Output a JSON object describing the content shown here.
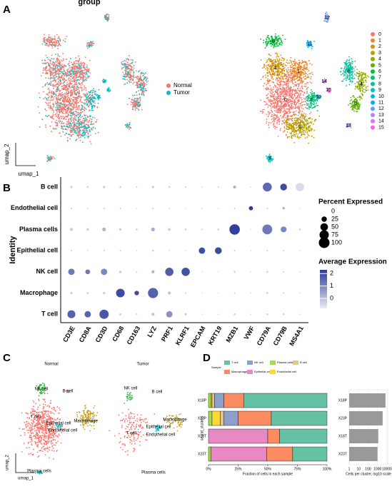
{
  "panels": {
    "a": "A",
    "b": "B",
    "c": "C",
    "d": "D"
  },
  "umap_group": {
    "title": "group",
    "xlabel": "umap_1",
    "ylabel": "umap_2",
    "legend": [
      {
        "name": "Normal",
        "color": "#f8766d"
      },
      {
        "name": "Tumor",
        "color": "#00bfc4"
      }
    ]
  },
  "umap_clusters": {
    "legend": [
      {
        "name": "0",
        "color": "#F8766D"
      },
      {
        "name": "1",
        "color": "#E88526"
      },
      {
        "name": "2",
        "color": "#D39200"
      },
      {
        "name": "3",
        "color": "#B79F00"
      },
      {
        "name": "4",
        "color": "#93AA00"
      },
      {
        "name": "5",
        "color": "#5EB300"
      },
      {
        "name": "6",
        "color": "#00BA38"
      },
      {
        "name": "7",
        "color": "#00BF74"
      },
      {
        "name": "8",
        "color": "#00C19F"
      },
      {
        "name": "9",
        "color": "#00BFC4"
      },
      {
        "name": "10",
        "color": "#00B9E3"
      },
      {
        "name": "11",
        "color": "#00ADFA"
      },
      {
        "name": "12",
        "color": "#619CFF"
      },
      {
        "name": "13",
        "color": "#AE87FF"
      },
      {
        "name": "14",
        "color": "#DB72FB"
      },
      {
        "name": "15",
        "color": "#F564E3"
      }
    ]
  },
  "umap_celltype": {
    "titles": [
      "Normal",
      "Tumor"
    ],
    "xlabel": "umap_1",
    "ylabel": "umap_2",
    "labels_normal": [
      "NK cell",
      "B cell",
      "T cell",
      "Epithelial cell",
      "Endothelial cell",
      "Macrophage",
      "Plasma cells"
    ],
    "labels_tumor": [
      "NK cell",
      "B cell",
      "Macrophage",
      "Epithelial cell",
      "T cell",
      "Endothelial cell",
      "Plasma cells"
    ]
  },
  "chart_data": [
    {
      "type": "dot",
      "ylabel": "Identity",
      "categories": [
        "CD3E",
        "CD8A",
        "CD3D",
        "CD68",
        "CD163",
        "LYZ",
        "PRF1",
        "KLRF1",
        "EPCAM",
        "KRT19",
        "MZB1",
        "VWF",
        "CD79A",
        "CD79B",
        "MS4A1"
      ],
      "rows": [
        "B cell",
        "Endothelial cell",
        "Plasma cells",
        "Epithelial cell",
        "NK cell",
        "Macrophage",
        "T cell"
      ],
      "pct": [
        [
          5,
          3,
          5,
          3,
          2,
          5,
          3,
          2,
          1,
          2,
          8,
          1,
          70,
          40,
          60
        ],
        [
          2,
          1,
          2,
          2,
          1,
          2,
          1,
          1,
          1,
          1,
          2,
          15,
          2,
          5,
          1
        ],
        [
          8,
          5,
          12,
          5,
          3,
          12,
          6,
          3,
          2,
          3,
          95,
          1,
          85,
          30,
          3
        ],
        [
          2,
          1,
          2,
          2,
          1,
          3,
          1,
          1,
          35,
          40,
          2,
          1,
          2,
          2,
          1
        ],
        [
          35,
          20,
          35,
          5,
          2,
          8,
          60,
          60,
          1,
          1,
          3,
          1,
          3,
          2,
          1
        ],
        [
          5,
          3,
          5,
          65,
          18,
          90,
          8,
          2,
          1,
          1,
          2,
          1,
          3,
          2,
          1
        ],
        [
          55,
          35,
          75,
          4,
          2,
          8,
          35,
          4,
          1,
          1,
          3,
          1,
          3,
          3,
          1
        ]
      ],
      "avg": [
        [
          -0.3,
          -0.3,
          -0.3,
          -0.3,
          -0.3,
          -0.3,
          -0.3,
          -0.3,
          -0.3,
          -0.3,
          0.2,
          -0.3,
          1.5,
          2.0,
          -0.5
        ],
        [
          -0.3,
          -0.3,
          -0.3,
          -0.3,
          -0.3,
          -0.3,
          -0.3,
          -0.3,
          -0.3,
          -0.3,
          -0.3,
          2.3,
          -0.3,
          0.3,
          -0.3
        ],
        [
          -0.2,
          -0.2,
          0.2,
          -0.2,
          -0.3,
          0.3,
          -0.2,
          -0.3,
          -0.3,
          -0.3,
          2.2,
          -0.3,
          1.2,
          1.0,
          -0.3
        ],
        [
          -0.3,
          -0.3,
          -0.3,
          -0.3,
          -0.3,
          -0.3,
          -0.3,
          -0.3,
          2.0,
          2.0,
          -0.3,
          -0.3,
          -0.3,
          -0.3,
          -0.3
        ],
        [
          1.2,
          1.2,
          1.0,
          -0.2,
          -0.3,
          0.2,
          1.7,
          1.9,
          -0.3,
          -0.3,
          -0.3,
          -0.3,
          -0.3,
          -0.3,
          -0.3
        ],
        [
          -0.3,
          -0.3,
          -0.3,
          2.0,
          2.0,
          1.6,
          -0.1,
          -0.3,
          -0.3,
          -0.3,
          -0.3,
          -0.3,
          -0.3,
          -0.3,
          -0.3
        ],
        [
          1.6,
          1.6,
          1.8,
          -0.3,
          -0.3,
          -0.1,
          0.8,
          -0.2,
          -0.3,
          -0.3,
          -0.3,
          -0.3,
          -0.3,
          -0.3,
          -0.3
        ]
      ],
      "size_legend": {
        "title": "Percent Expressed",
        "values": [
          0,
          25,
          50,
          75,
          100
        ]
      },
      "color_legend": {
        "title": "Average Expression",
        "ticks": [
          0,
          1,
          2
        ],
        "lim": [
          -0.8,
          2.3
        ],
        "colors": [
          "#ececf2",
          "#2b3a99"
        ]
      }
    },
    {
      "type": "stacked_bar",
      "legend_title": "Sample",
      "ylabel": "seurat_clusters",
      "xlabel": "Fraction of cells in each sample",
      "categories": [
        "X18P",
        "X23P",
        "X18T",
        "X23T"
      ],
      "series": [
        {
          "name": "T cell",
          "color": "#66c2a5",
          "values": [
            70,
            47,
            40,
            29
          ]
        },
        {
          "name": "NK cell",
          "color": "#8da0cb",
          "values": [
            8,
            12,
            0,
            0
          ]
        },
        {
          "name": "Plasma cells",
          "color": "#a6d854",
          "values": [
            2,
            3,
            0,
            2
          ]
        },
        {
          "name": "B cell",
          "color": "#e5c494",
          "values": [
            2,
            3,
            0,
            0
          ]
        },
        {
          "name": "Macrophage",
          "color": "#fc8d62",
          "values": [
            17,
            28,
            10,
            22
          ]
        },
        {
          "name": "Epithelial cell",
          "color": "#e78ac3",
          "values": [
            0,
            0,
            50,
            47
          ]
        },
        {
          "name": "Endothelial cell",
          "color": "#ffd92f",
          "values": [
            1,
            7,
            0,
            0
          ]
        }
      ],
      "xlim": [
        0,
        100
      ],
      "xticks": [
        {
          "value": 0,
          "label": "0%"
        },
        {
          "value": 25,
          "label": "25%"
        },
        {
          "value": 50,
          "label": "50%"
        },
        {
          "value": 75,
          "label": "75%"
        },
        {
          "value": 100,
          "label": "100%"
        }
      ]
    },
    {
      "type": "bar",
      "log_x": true,
      "xlabel": "Cells per cluster, log10 scale",
      "color": "#999999",
      "categories": [
        "X18P",
        "X23P",
        "X18T",
        "X23T"
      ],
      "values": [
        7000,
        3500,
        1200,
        1000
      ],
      "xlim": [
        1,
        12000
      ],
      "xticks": [
        1,
        10,
        100,
        1000,
        10000
      ]
    }
  ]
}
